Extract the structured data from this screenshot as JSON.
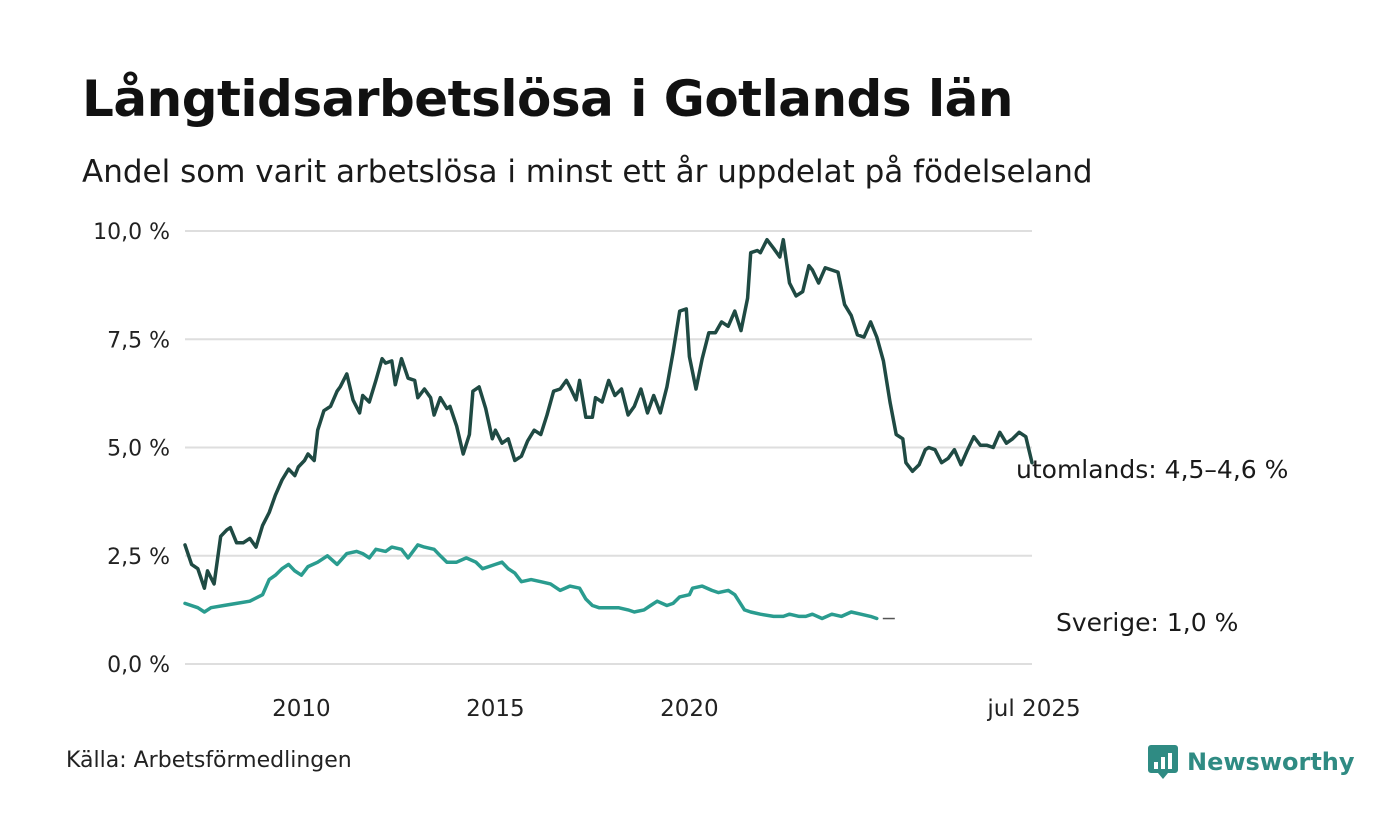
{
  "title": "Långtidsarbetslösa i Gotlands län",
  "subtitle": "Andel som varit arbetslösa i minst ett år uppdelat på födelseland",
  "source": "Källa: Arbetsförmedlingen",
  "brand": {
    "name": "Newsworthy",
    "icon": "newsworthy-logo-icon",
    "color": "#2f8b83"
  },
  "chart_data": {
    "type": "line",
    "y_ticks": [
      "0,0 %",
      "2,5 %",
      "5,0 %",
      "7,5 %",
      "10,0 %"
    ],
    "ylim": [
      0,
      10
    ],
    "x_ticks": [
      "2010",
      "2015",
      "2020",
      "jul 2025"
    ],
    "grid": "horizontal",
    "series": [
      {
        "name": "utomlands",
        "end_label": "utomlands: 4,5–4,6 %",
        "color": "#1f4a43",
        "points": [
          [
            2008.0,
            2.75
          ],
          [
            2008.17,
            2.3
          ],
          [
            2008.33,
            2.2
          ],
          [
            2008.5,
            1.75
          ],
          [
            2008.58,
            2.15
          ],
          [
            2008.75,
            1.85
          ],
          [
            2008.92,
            2.95
          ],
          [
            2009.08,
            3.1
          ],
          [
            2009.17,
            3.15
          ],
          [
            2009.33,
            2.8
          ],
          [
            2009.5,
            2.8
          ],
          [
            2009.67,
            2.9
          ],
          [
            2009.83,
            2.7
          ],
          [
            2010.0,
            3.2
          ],
          [
            2010.17,
            3.5
          ],
          [
            2010.33,
            3.9
          ],
          [
            2010.5,
            4.25
          ],
          [
            2010.67,
            4.5
          ],
          [
            2010.83,
            4.35
          ],
          [
            2010.92,
            4.55
          ],
          [
            2011.08,
            4.7
          ],
          [
            2011.17,
            4.85
          ],
          [
            2011.33,
            4.7
          ],
          [
            2011.42,
            5.4
          ],
          [
            2011.58,
            5.85
          ],
          [
            2011.75,
            5.95
          ],
          [
            2011.92,
            6.3
          ],
          [
            2012.0,
            6.4
          ],
          [
            2012.17,
            6.7
          ],
          [
            2012.33,
            6.1
          ],
          [
            2012.5,
            5.8
          ],
          [
            2012.58,
            6.2
          ],
          [
            2012.75,
            6.05
          ],
          [
            2012.92,
            6.55
          ],
          [
            2013.08,
            7.05
          ],
          [
            2013.17,
            6.95
          ],
          [
            2013.33,
            7.0
          ],
          [
            2013.42,
            6.45
          ],
          [
            2013.58,
            7.05
          ],
          [
            2013.75,
            6.6
          ],
          [
            2013.92,
            6.55
          ],
          [
            2014.0,
            6.15
          ],
          [
            2014.17,
            6.35
          ],
          [
            2014.33,
            6.15
          ],
          [
            2014.42,
            5.75
          ],
          [
            2014.58,
            6.15
          ],
          [
            2014.75,
            5.9
          ],
          [
            2014.83,
            5.95
          ],
          [
            2015.0,
            5.5
          ],
          [
            2015.17,
            4.85
          ],
          [
            2015.33,
            5.3
          ],
          [
            2015.42,
            6.3
          ],
          [
            2015.58,
            6.4
          ],
          [
            2015.75,
            5.9
          ],
          [
            2015.92,
            5.2
          ],
          [
            2016.0,
            5.4
          ],
          [
            2016.17,
            5.1
          ],
          [
            2016.33,
            5.2
          ],
          [
            2016.5,
            4.7
          ],
          [
            2016.67,
            4.8
          ],
          [
            2016.83,
            5.15
          ],
          [
            2017.0,
            5.4
          ],
          [
            2017.17,
            5.3
          ],
          [
            2017.33,
            5.75
          ],
          [
            2017.5,
            6.3
          ],
          [
            2017.67,
            6.35
          ],
          [
            2017.83,
            6.55
          ],
          [
            2017.92,
            6.4
          ],
          [
            2018.08,
            6.1
          ],
          [
            2018.17,
            6.55
          ],
          [
            2018.33,
            5.7
          ],
          [
            2018.5,
            5.7
          ],
          [
            2018.58,
            6.15
          ],
          [
            2018.75,
            6.05
          ],
          [
            2018.92,
            6.55
          ],
          [
            2019.08,
            6.2
          ],
          [
            2019.25,
            6.35
          ],
          [
            2019.42,
            5.75
          ],
          [
            2019.58,
            5.95
          ],
          [
            2019.75,
            6.35
          ],
          [
            2019.92,
            5.8
          ],
          [
            2020.08,
            6.2
          ],
          [
            2020.25,
            5.8
          ],
          [
            2020.42,
            6.4
          ],
          [
            2020.58,
            7.2
          ],
          [
            2020.75,
            8.15
          ],
          [
            2020.92,
            8.2
          ],
          [
            2021.0,
            7.1
          ],
          [
            2021.17,
            6.35
          ],
          [
            2021.33,
            7.05
          ],
          [
            2021.5,
            7.65
          ],
          [
            2021.67,
            7.65
          ],
          [
            2021.83,
            7.9
          ],
          [
            2022.0,
            7.8
          ],
          [
            2022.17,
            8.15
          ],
          [
            2022.33,
            7.7
          ],
          [
            2022.5,
            8.45
          ],
          [
            2022.58,
            9.5
          ],
          [
            2022.75,
            9.55
          ],
          [
            2022.83,
            9.5
          ],
          [
            2023.0,
            9.8
          ],
          [
            2023.17,
            9.6
          ],
          [
            2023.33,
            9.4
          ],
          [
            2023.42,
            9.8
          ],
          [
            2023.58,
            8.8
          ],
          [
            2023.75,
            8.5
          ],
          [
            2023.92,
            8.6
          ],
          [
            2024.08,
            9.2
          ],
          [
            2024.17,
            9.1
          ],
          [
            2024.33,
            8.8
          ],
          [
            2024.5,
            9.15
          ],
          [
            2024.67,
            9.1
          ],
          [
            2024.83,
            9.05
          ],
          [
            2025.0,
            8.3
          ],
          [
            2025.17,
            8.05
          ],
          [
            2025.33,
            7.6
          ],
          [
            2025.5,
            7.55
          ],
          [
            2025.67,
            7.9
          ],
          [
            2025.83,
            7.55
          ],
          [
            2026.0,
            7.0
          ],
          [
            2026.17,
            6.05
          ],
          [
            2026.33,
            5.3
          ],
          [
            2026.5,
            5.2
          ],
          [
            2026.58,
            4.65
          ],
          [
            2026.75,
            4.45
          ],
          [
            2026.92,
            4.6
          ],
          [
            2027.08,
            4.95
          ],
          [
            2027.17,
            5.0
          ],
          [
            2027.33,
            4.95
          ],
          [
            2027.5,
            4.65
          ],
          [
            2027.67,
            4.75
          ],
          [
            2027.83,
            4.95
          ],
          [
            2028.0,
            4.6
          ],
          [
            2028.17,
            4.95
          ],
          [
            2028.33,
            5.25
          ],
          [
            2028.5,
            5.05
          ],
          [
            2028.67,
            5.05
          ],
          [
            2028.83,
            5.0
          ],
          [
            2029.0,
            5.35
          ],
          [
            2029.17,
            5.1
          ],
          [
            2029.33,
            5.2
          ],
          [
            2029.5,
            5.35
          ],
          [
            2029.67,
            5.25
          ],
          [
            2029.83,
            4.65
          ]
        ]
      },
      {
        "name": "Sverige",
        "end_label": "Sverige: 1,0 %",
        "color": "#2a9c8f",
        "points": [
          [
            2008.0,
            1.4
          ],
          [
            2008.33,
            1.3
          ],
          [
            2008.5,
            1.2
          ],
          [
            2008.67,
            1.3
          ],
          [
            2009.0,
            1.35
          ],
          [
            2009.33,
            1.4
          ],
          [
            2009.67,
            1.45
          ],
          [
            2010.0,
            1.6
          ],
          [
            2010.17,
            1.95
          ],
          [
            2010.33,
            2.05
          ],
          [
            2010.5,
            2.2
          ],
          [
            2010.67,
            2.3
          ],
          [
            2010.83,
            2.15
          ],
          [
            2011.0,
            2.05
          ],
          [
            2011.17,
            2.25
          ],
          [
            2011.42,
            2.35
          ],
          [
            2011.67,
            2.5
          ],
          [
            2011.92,
            2.3
          ],
          [
            2012.17,
            2.55
          ],
          [
            2012.42,
            2.6
          ],
          [
            2012.58,
            2.55
          ],
          [
            2012.75,
            2.45
          ],
          [
            2012.92,
            2.65
          ],
          [
            2013.17,
            2.6
          ],
          [
            2013.33,
            2.7
          ],
          [
            2013.58,
            2.65
          ],
          [
            2013.75,
            2.45
          ],
          [
            2014.0,
            2.75
          ],
          [
            2014.17,
            2.7
          ],
          [
            2014.42,
            2.65
          ],
          [
            2014.58,
            2.5
          ],
          [
            2014.75,
            2.35
          ],
          [
            2015.0,
            2.35
          ],
          [
            2015.25,
            2.45
          ],
          [
            2015.5,
            2.35
          ],
          [
            2015.67,
            2.2
          ],
          [
            2015.83,
            2.25
          ],
          [
            2016.0,
            2.3
          ],
          [
            2016.17,
            2.35
          ],
          [
            2016.33,
            2.2
          ],
          [
            2016.5,
            2.1
          ],
          [
            2016.67,
            1.9
          ],
          [
            2016.92,
            1.95
          ],
          [
            2017.17,
            1.9
          ],
          [
            2017.42,
            1.85
          ],
          [
            2017.67,
            1.7
          ],
          [
            2017.92,
            1.8
          ],
          [
            2018.17,
            1.75
          ],
          [
            2018.33,
            1.5
          ],
          [
            2018.5,
            1.35
          ],
          [
            2018.67,
            1.3
          ],
          [
            2018.92,
            1.3
          ],
          [
            2019.17,
            1.3
          ],
          [
            2019.42,
            1.25
          ],
          [
            2019.58,
            1.2
          ],
          [
            2019.83,
            1.25
          ],
          [
            2020.0,
            1.35
          ],
          [
            2020.17,
            1.45
          ],
          [
            2020.42,
            1.35
          ],
          [
            2020.58,
            1.4
          ],
          [
            2020.75,
            1.55
          ],
          [
            2021.0,
            1.6
          ],
          [
            2021.08,
            1.75
          ],
          [
            2021.33,
            1.8
          ],
          [
            2021.58,
            1.7
          ],
          [
            2021.75,
            1.65
          ],
          [
            2022.0,
            1.7
          ],
          [
            2022.17,
            1.6
          ],
          [
            2022.42,
            1.25
          ],
          [
            2022.58,
            1.2
          ],
          [
            2022.83,
            1.15
          ],
          [
            2023.17,
            1.1
          ],
          [
            2023.42,
            1.1
          ],
          [
            2023.58,
            1.15
          ],
          [
            2023.83,
            1.1
          ],
          [
            2024.0,
            1.1
          ],
          [
            2024.17,
            1.15
          ],
          [
            2024.42,
            1.05
          ],
          [
            2024.67,
            1.15
          ],
          [
            2024.92,
            1.1
          ],
          [
            2025.17,
            1.2
          ],
          [
            2025.42,
            1.15
          ],
          [
            2025.67,
            1.1
          ],
          [
            2025.83,
            1.05
          ]
        ]
      }
    ]
  }
}
